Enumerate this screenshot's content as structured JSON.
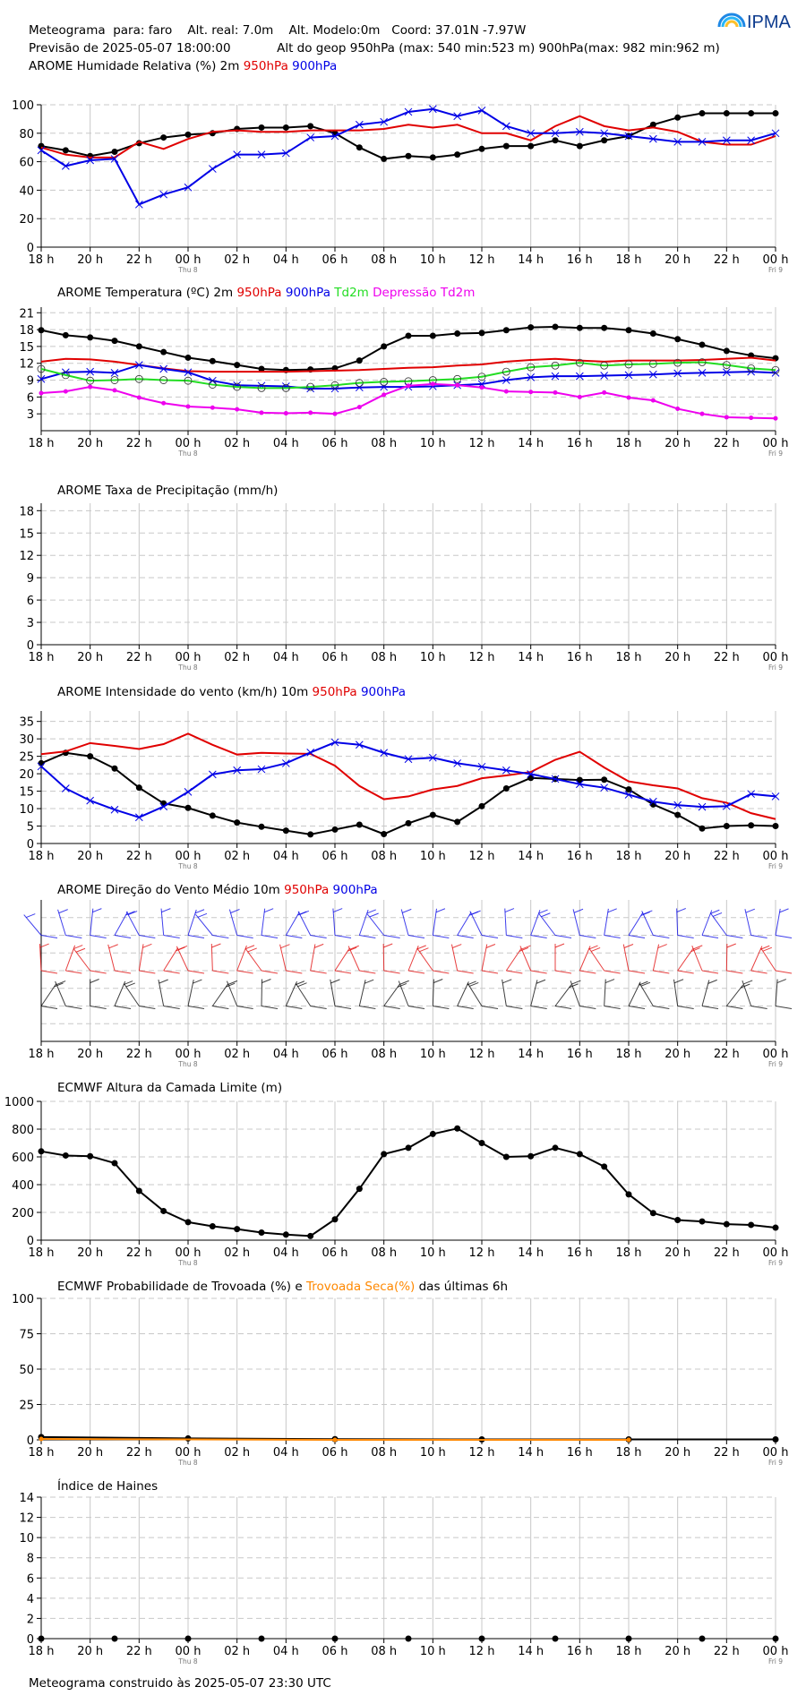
{
  "header": {
    "line1": "Meteograma  para: faro    Alt. real: 7.0m    Alt. Modelo:0m   Coord: 37.01N -7.97W",
    "line2": "Previsão de 2025-05-07 18:00:00            Alt do geop 950hPa (max: 540 min:523 m) 900hPa(max: 982 min:962 m)",
    "logo_text": "IPMA",
    "logo_icon": "ipma-rainbow-icon"
  },
  "footer": "Meteograma construido às 2025-05-07 23:30 UTC",
  "colors": {
    "black": "#000000",
    "red": "#e00000",
    "blue": "#0000e6",
    "green": "#22dd22",
    "magenta": "#ee00ee",
    "orange": "#ff8800",
    "grid": "#c8c8c8"
  },
  "x_ticks": [
    "18 h",
    "20 h",
    "22 h",
    "00 h",
    "02 h",
    "04 h",
    "06 h",
    "08 h",
    "10 h",
    "12 h",
    "14 h",
    "16 h",
    "18 h",
    "20 h",
    "22 h",
    "00 h"
  ],
  "x_sublabels": [
    {
      "tick": 3,
      "text": "Thu 8"
    },
    {
      "tick": 15,
      "text": "Fri 9"
    }
  ],
  "chart_data": [
    {
      "id": "humidity",
      "type": "line",
      "title_parts": [
        {
          "text": "AROME Humidade Relativa (%)  2m ",
          "color": "#000000"
        },
        {
          "text": "950hPa ",
          "color": "#e00000"
        },
        {
          "text": "900hPa",
          "color": "#0000e6"
        }
      ],
      "title_inline": true,
      "ylim": [
        0,
        100
      ],
      "yticks": [
        0,
        20,
        40,
        60,
        80,
        100
      ],
      "x_hours": [
        0,
        1,
        2,
        3,
        4,
        5,
        6,
        7,
        8,
        9,
        10,
        11,
        12,
        13,
        14,
        15,
        16,
        17,
        18,
        19,
        20,
        21,
        22,
        23,
        24,
        25,
        26,
        27,
        28,
        29,
        30
      ],
      "series": [
        {
          "name": "2m",
          "color": "#000000",
          "marker": "dot",
          "values": [
            71,
            68,
            64,
            67,
            73,
            77,
            79,
            80,
            83,
            84,
            84,
            85,
            80,
            70,
            62,
            64,
            63,
            65,
            69,
            71,
            71,
            75,
            71,
            75,
            78,
            86,
            91,
            94,
            94,
            94,
            94
          ]
        },
        {
          "name": "950hPa",
          "color": "#e00000",
          "marker": "none",
          "values": [
            70,
            65,
            63,
            63,
            74,
            69,
            76,
            81,
            82,
            81,
            81,
            82,
            82,
            82,
            83,
            86,
            84,
            86,
            80,
            80,
            75,
            85,
            92,
            85,
            82,
            84,
            81,
            74,
            72,
            72,
            78
          ]
        },
        {
          "name": "900hPa",
          "color": "#0000e6",
          "marker": "x",
          "values": [
            68,
            57,
            61,
            62,
            30,
            37,
            42,
            55,
            65,
            65,
            66,
            77,
            78,
            86,
            88,
            95,
            97,
            92,
            96,
            85,
            80,
            80,
            81,
            80,
            78,
            76,
            74,
            74,
            75,
            75,
            80
          ]
        }
      ]
    },
    {
      "id": "temperature",
      "type": "line",
      "title_parts": [
        {
          "text": "AROME Temperatura (ºC)  2m ",
          "color": "#000000"
        },
        {
          "text": "950hPa ",
          "color": "#e00000"
        },
        {
          "text": "900hPa ",
          "color": "#0000e6"
        },
        {
          "text": "Td2m ",
          "color": "#22dd22"
        },
        {
          "text": "Depressão Td2m",
          "color": "#ee00ee"
        }
      ],
      "ylim": [
        0,
        22
      ],
      "yticks": [
        3,
        6,
        9,
        12,
        15,
        18,
        21
      ],
      "x_hours": [
        0,
        1,
        2,
        3,
        4,
        5,
        6,
        7,
        8,
        9,
        10,
        11,
        12,
        13,
        14,
        15,
        16,
        17,
        18,
        19,
        20,
        21,
        22,
        23,
        24,
        25,
        26,
        27,
        28,
        29,
        30
      ],
      "series": [
        {
          "name": "2m",
          "color": "#000000",
          "marker": "dot",
          "values": [
            17.9,
            17.0,
            16.6,
            16.0,
            15.0,
            14.0,
            13.0,
            12.4,
            11.7,
            11.0,
            10.8,
            10.9,
            11.1,
            12.5,
            15.0,
            16.9,
            16.9,
            17.3,
            17.4,
            17.9,
            18.4,
            18.5,
            18.3,
            18.3,
            17.9,
            17.3,
            16.3,
            15.3,
            14.2,
            13.4,
            12.9
          ]
        },
        {
          "name": "950hPa",
          "color": "#e00000",
          "marker": "none",
          "values": [
            12.3,
            12.8,
            12.7,
            12.3,
            11.7,
            11.1,
            10.6,
            10.5,
            10.5,
            10.5,
            10.5,
            10.6,
            10.7,
            10.8,
            11.0,
            11.2,
            11.3,
            11.6,
            11.8,
            12.3,
            12.6,
            12.8,
            12.5,
            12.3,
            12.5,
            12.5,
            12.5,
            12.6,
            12.8,
            13.0,
            12.5
          ]
        },
        {
          "name": "900hPa",
          "color": "#0000e6",
          "marker": "x",
          "values": [
            9.2,
            10.4,
            10.5,
            10.3,
            11.7,
            11.0,
            10.4,
            8.9,
            8.1,
            8.0,
            7.9,
            7.5,
            7.5,
            7.7,
            7.8,
            7.8,
            7.9,
            8.1,
            8.3,
            9.0,
            9.5,
            9.7,
            9.7,
            9.8,
            9.9,
            10.0,
            10.2,
            10.3,
            10.4,
            10.5,
            10.3
          ]
        },
        {
          "name": "Td2m",
          "color": "#22dd22",
          "marker": "circle",
          "values": [
            11.0,
            9.9,
            8.9,
            9.0,
            9.2,
            9.0,
            8.9,
            8.2,
            7.8,
            7.6,
            7.6,
            7.8,
            8.1,
            8.5,
            8.7,
            8.8,
            9.0,
            9.2,
            9.6,
            10.5,
            11.3,
            11.6,
            12.1,
            11.6,
            11.8,
            11.9,
            12.1,
            12.2,
            11.7,
            11.1,
            10.8
          ]
        },
        {
          "name": "Depressão Td2m",
          "color": "#ee00ee",
          "marker": "dot-small",
          "values": [
            6.7,
            7.0,
            7.8,
            7.2,
            5.9,
            4.9,
            4.3,
            4.1,
            3.8,
            3.2,
            3.1,
            3.2,
            3.0,
            4.2,
            6.4,
            8.0,
            8.3,
            8.1,
            7.7,
            7.0,
            6.9,
            6.8,
            6.0,
            6.8,
            5.9,
            5.4,
            3.9,
            3.0,
            2.4,
            2.3,
            2.2
          ]
        }
      ]
    },
    {
      "id": "precipitation",
      "type": "line",
      "title_parts": [
        {
          "text": "AROME Taxa de Precipitação (mm/h)",
          "color": "#000000"
        }
      ],
      "ylim": [
        0,
        19
      ],
      "yticks": [
        0,
        3,
        6,
        9,
        12,
        15,
        18
      ],
      "x_hours": [],
      "series": []
    },
    {
      "id": "wind",
      "type": "line",
      "title_parts": [
        {
          "text": "AROME Intensidade do vento (km/h)   10m ",
          "color": "#000000"
        },
        {
          "text": "950hPa ",
          "color": "#e00000"
        },
        {
          "text": "900hPa",
          "color": "#0000e6"
        }
      ],
      "ylim": [
        0,
        38
      ],
      "yticks": [
        0,
        5,
        10,
        15,
        20,
        25,
        30,
        35
      ],
      "x_hours": [
        0,
        1,
        2,
        3,
        4,
        5,
        6,
        7,
        8,
        9,
        10,
        11,
        12,
        13,
        14,
        15,
        16,
        17,
        18,
        19,
        20,
        21,
        22,
        23,
        24,
        25,
        26,
        27,
        28,
        29,
        30
      ],
      "series": [
        {
          "name": "10m",
          "color": "#000000",
          "marker": "dot",
          "values": [
            23,
            26,
            25,
            21.5,
            16,
            11.5,
            10.2,
            8,
            6,
            4.8,
            3.7,
            2.6,
            4,
            5.4,
            2.7,
            5.8,
            8.2,
            6.2,
            10.7,
            15.8,
            18.8,
            18.5,
            18.2,
            18.3,
            15.5,
            11.2,
            8.2,
            4.3,
            5,
            5.2,
            5
          ]
        },
        {
          "name": "950hPa",
          "color": "#e00000",
          "marker": "none",
          "values": [
            25.6,
            26.4,
            28.8,
            28,
            27.1,
            28.5,
            31.5,
            28.3,
            25.5,
            26,
            25.8,
            25.7,
            22.3,
            16.5,
            12.7,
            13.5,
            15.5,
            16.5,
            18.7,
            19.5,
            20.5,
            24,
            26.3,
            21.8,
            17.8,
            16.7,
            15.8,
            13,
            11.7,
            8.7,
            7
          ]
        },
        {
          "name": "900hPa",
          "color": "#0000e6",
          "marker": "x",
          "values": [
            22.1,
            15.8,
            12.3,
            9.7,
            7.5,
            10.6,
            14.8,
            19.8,
            21,
            21.3,
            23,
            26.1,
            29,
            28.3,
            26,
            24.2,
            24.6,
            23,
            22,
            21,
            19.9,
            18.5,
            17,
            16,
            14,
            12,
            11,
            10.5,
            10.7,
            14.2,
            13.5
          ]
        }
      ]
    },
    {
      "id": "wind_direction",
      "type": "barbs",
      "title_parts": [
        {
          "text": "AROME Direção do Vento Médio   10m ",
          "color": "#000000"
        },
        {
          "text": "950hPa ",
          "color": "#e00000"
        },
        {
          "text": "900hPa",
          "color": "#0000e6"
        }
      ],
      "ylim": [
        0,
        4
      ],
      "yticks": [],
      "levels": [
        {
          "name": "900hPa",
          "color": "#0000e6",
          "y": 3
        },
        {
          "name": "950hPa",
          "color": "#e00000",
          "y": 2
        },
        {
          "name": "10m",
          "color": "#000000",
          "y": 1
        }
      ],
      "x_hours": [
        0,
        1,
        2,
        3,
        4,
        5,
        6,
        7,
        8,
        9,
        10,
        11,
        12,
        13,
        14,
        15,
        16,
        17,
        18,
        19,
        20,
        21,
        22,
        23,
        24,
        25,
        26,
        27,
        28,
        29,
        30
      ]
    },
    {
      "id": "boundary_layer",
      "type": "line",
      "title_parts": [
        {
          "text": "ECMWF Altura da Camada Limite (m)",
          "color": "#000000"
        }
      ],
      "ylim": [
        0,
        1000
      ],
      "yticks": [
        0,
        200,
        400,
        600,
        800,
        1000
      ],
      "x_hours": [
        0,
        1,
        2,
        3,
        4,
        5,
        6,
        7,
        8,
        9,
        10,
        11,
        12,
        13,
        14,
        15,
        16,
        17,
        18,
        19,
        20,
        21,
        22,
        23,
        24,
        25,
        26,
        27,
        28,
        29,
        30
      ],
      "series": [
        {
          "name": "",
          "color": "#000000",
          "marker": "dot",
          "values": [
            640,
            610,
            605,
            555,
            355,
            210,
            130,
            100,
            80,
            55,
            40,
            30,
            150,
            370,
            620,
            665,
            765,
            805,
            700,
            600,
            605,
            665,
            620,
            530,
            330,
            195,
            145,
            135,
            115,
            110,
            90
          ]
        }
      ]
    },
    {
      "id": "thunderstorm",
      "type": "line",
      "title_parts": [
        {
          "text": "ECMWF Probabilidade de Trovoada (%) e  ",
          "color": "#000000"
        },
        {
          "text": "Trovoada Seca(%) ",
          "color": "#ff8800"
        },
        {
          "text": " das últimas 6h",
          "color": "#000000"
        }
      ],
      "ylim": [
        0,
        100
      ],
      "yticks": [
        0,
        25,
        50,
        75,
        100
      ],
      "x_hours": [
        0,
        6,
        12,
        18,
        24,
        30
      ],
      "series": [
        {
          "name": "",
          "color": "#000000",
          "marker": "dot",
          "values": [
            2,
            1,
            0.5,
            0.3,
            0.3,
            0.3
          ]
        },
        {
          "name": "",
          "color": "#ff8800",
          "marker": "dot-small",
          "x": [
            0,
            12,
            24
          ],
          "values": [
            0.6,
            0,
            0
          ]
        }
      ]
    },
    {
      "id": "haines",
      "type": "scatter",
      "title_parts": [
        {
          "text": "Índice de Haines",
          "color": "#000000"
        }
      ],
      "ylim": [
        0,
        14
      ],
      "yticks": [
        0,
        2,
        4,
        6,
        8,
        10,
        12,
        14
      ],
      "x_hours": [
        0,
        3,
        6,
        9,
        12,
        15,
        18,
        21,
        24,
        27,
        30
      ],
      "series": [
        {
          "name": "",
          "color": "#000000",
          "marker": "dot",
          "values": [
            0,
            0,
            0,
            0,
            0,
            0,
            0,
            0,
            0,
            0,
            0
          ]
        }
      ]
    }
  ]
}
